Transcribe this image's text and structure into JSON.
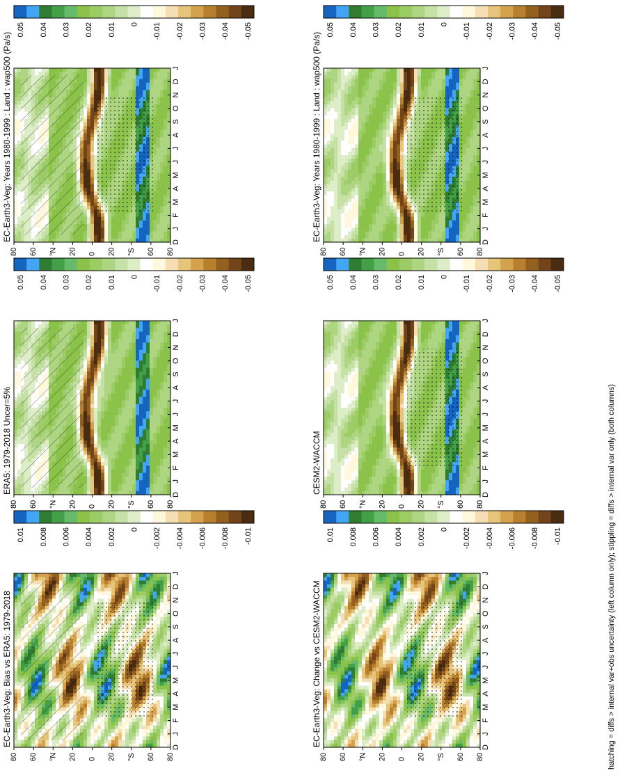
{
  "figure": {
    "footer": "hatching = diffs > internal var+obs uncertainty (left column only); stippling = diffs > internal var only (both columns)"
  },
  "months": [
    "D",
    "J",
    "F",
    "M",
    "A",
    "M",
    "J",
    "J",
    "A",
    "S",
    "O",
    "N",
    "D",
    "J"
  ],
  "lat_ticks": [
    "80",
    "60",
    "°N",
    "20",
    "0",
    "20",
    "°S",
    "60",
    "80"
  ],
  "colors": {
    "colorbar": [
      "#1565c0",
      "#42a5f5",
      "#2e7d32",
      "#43a047",
      "#66bb6a",
      "#8bc34a",
      "#9ccc65",
      "#aed581",
      "#c5e1a5",
      "#dcedc8",
      "#ffffff",
      "#fff8dc",
      "#f5deb3",
      "#e6c47a",
      "#d4a24c",
      "#b8802e",
      "#946020",
      "#73441a",
      "#4a2c10"
    ]
  },
  "chart_data": [
    {
      "type": "heatmap",
      "title": "EC-Earth3-Veg: Years 1980-1999 : Land : wap500 (Pa/s)",
      "colorbar_ticks": [
        "0.05",
        "0.04",
        "0.03",
        "0.02",
        "0.01",
        "0",
        "-0.01",
        "-0.02",
        "-0.03",
        "-0.04",
        "-0.05"
      ],
      "hatching": true,
      "stippling": true,
      "mode": "clim"
    },
    {
      "type": "heatmap",
      "title": "EC-Earth3-Veg: Years 1980-1999 : Land : wap500 (Pa/s)",
      "colorbar_ticks": [
        "0.05",
        "0.04",
        "0.03",
        "0.02",
        "0.01",
        "0",
        "-0.01",
        "-0.02",
        "-0.03",
        "-0.04",
        "-0.05"
      ],
      "hatching": false,
      "stippling": true,
      "mode": "clim"
    },
    {
      "type": "heatmap",
      "title": "ERA5: 1979-2018 Uncer=5%",
      "colorbar_ticks": [
        "0.05",
        "0.04",
        "0.03",
        "0.02",
        "0.01",
        "0",
        "-0.01",
        "-0.02",
        "-0.03",
        "-0.04",
        "-0.05"
      ],
      "hatching": true,
      "stippling": false,
      "mode": "clim"
    },
    {
      "type": "heatmap",
      "title": "CESM2-WACCM",
      "colorbar_ticks": [
        "0.05",
        "0.04",
        "0.03",
        "0.02",
        "0.01",
        "0",
        "-0.01",
        "-0.02",
        "-0.03",
        "-0.04",
        "-0.05"
      ],
      "hatching": false,
      "stippling": true,
      "mode": "clim"
    },
    {
      "type": "heatmap",
      "title": "EC-Earth3-Veg: Bias vs ERA5: 1979-2018",
      "colorbar_ticks": [
        "0.01",
        "0.008",
        "0.006",
        "0.004",
        "0.002",
        "0",
        "-0.002",
        "-0.004",
        "-0.006",
        "-0.008",
        "-0.01"
      ],
      "hatching": true,
      "stippling": true,
      "mode": "diff"
    },
    {
      "type": "heatmap",
      "title": "EC-Earth3-Veg: Change vs CESM2-WACCM",
      "colorbar_ticks": [
        "0.01",
        "0.008",
        "0.006",
        "0.004",
        "0.002",
        "0",
        "-0.002",
        "-0.004",
        "-0.006",
        "-0.008",
        "-0.01"
      ],
      "hatching": false,
      "stippling": true,
      "mode": "diff"
    }
  ]
}
